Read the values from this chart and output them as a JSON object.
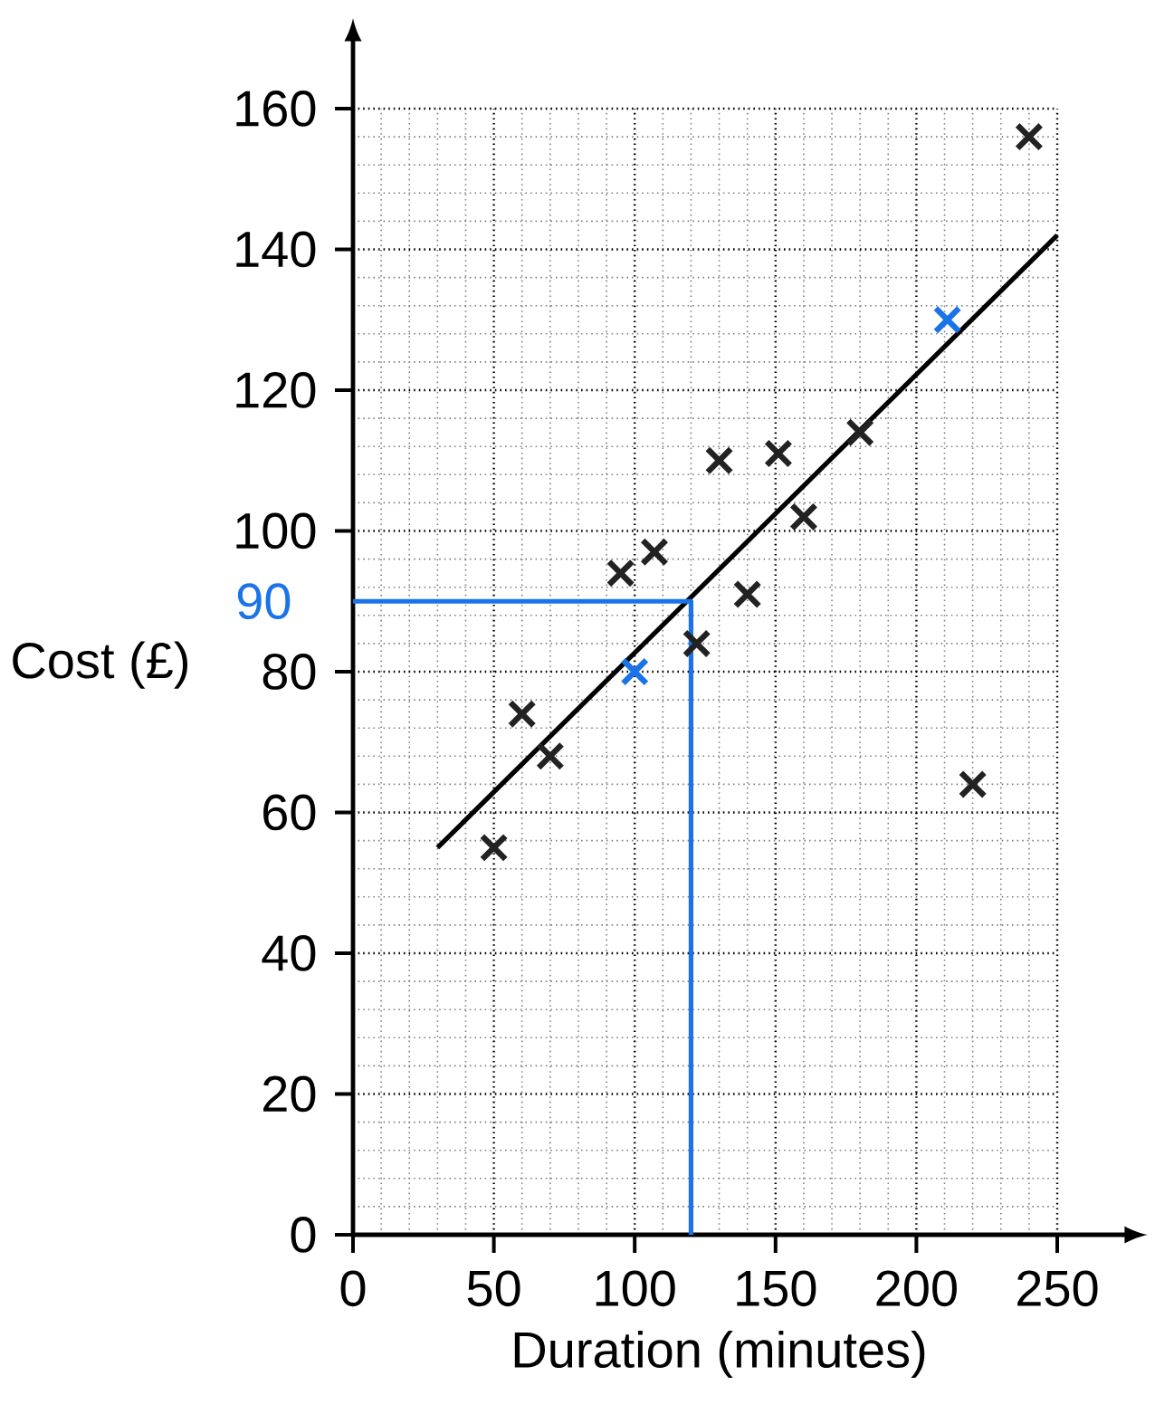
{
  "chart_data": {
    "type": "scatter",
    "xlabel": "Duration (minutes)",
    "ylabel": "Cost (£)",
    "xlim": [
      0,
      250
    ],
    "ylim": [
      0,
      160
    ],
    "xticks": [
      0,
      50,
      100,
      150,
      200,
      250
    ],
    "yticks": [
      0,
      20,
      40,
      60,
      80,
      100,
      120,
      140,
      160
    ],
    "grid": true,
    "marker": "cross",
    "annotations": [
      {
        "text": "90",
        "x": 0,
        "y": 90
      }
    ],
    "series": [
      {
        "color": "#222222",
        "x": [
          50,
          60,
          70,
          95,
          107,
          122,
          130,
          140,
          151,
          160,
          180,
          220,
          240
        ],
        "values": [
          55,
          74,
          68,
          94,
          97,
          84,
          110,
          91,
          111,
          102,
          114,
          64,
          156
        ]
      },
      {
        "color": "#1a73e8",
        "x": [
          100,
          211
        ],
        "values": [
          80,
          130
        ]
      },
      {
        "type": "line",
        "color": "#000000",
        "marker": "none",
        "x": [
          30,
          250
        ],
        "values": [
          55,
          142
        ]
      },
      {
        "type": "line",
        "color": "#1a73e8",
        "marker": "none",
        "x": [
          0,
          120,
          120
        ],
        "values": [
          90,
          90,
          0
        ]
      }
    ]
  }
}
